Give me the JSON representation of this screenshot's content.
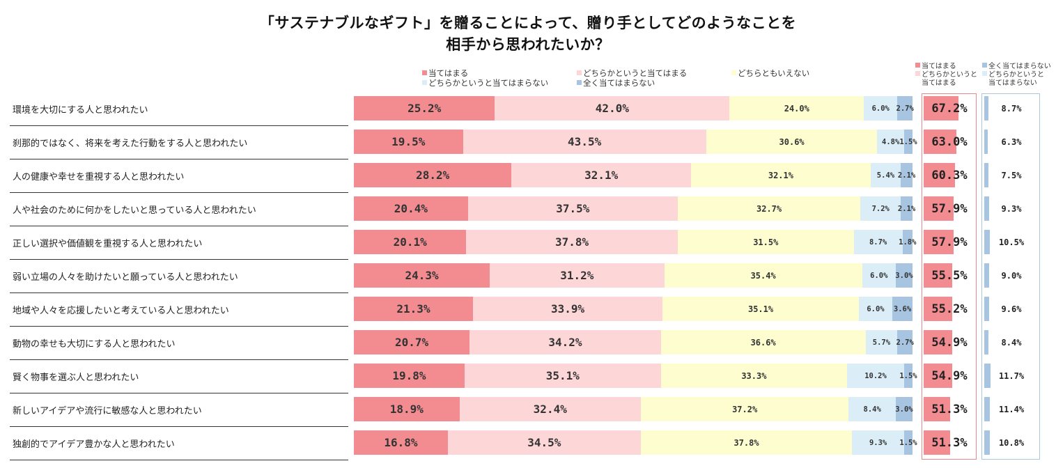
{
  "title_line1": "「サステナブルなギフト」を贈ることによって、贈り手としてどのようなことを",
  "title_line2": "相手から思われたいか？",
  "colors": {
    "c1": "#f28c91",
    "c2": "#fdd6d8",
    "c3": "#fdfdd0",
    "c4": "#dbedf6",
    "c5": "#a7c4e0"
  },
  "legend": {
    "c1": "当てはまる",
    "c2": "どちらかというと当てはまる",
    "c3": "どちらともいえない",
    "c4": "どちらかというと当てはまらない",
    "c5": "全く当てはまらない"
  },
  "summary_legend": {
    "pos_1": "当てはまる",
    "pos_2a": "どちらかというと",
    "pos_2b": "当てはまる",
    "neg_1": "全く当てはまらない",
    "neg_2a": "どちらかというと",
    "neg_2b": "当てはまらない"
  },
  "chart_data": {
    "type": "bar",
    "orientation": "horizontal",
    "stacked": true,
    "percent_format": "%",
    "categories": [
      "環境を大切にする人と思われたい",
      "刹那的ではなく、将来を考えた行動をする人と思われたい",
      "人の健康や幸せを重視する人と思われたい",
      "人や社会のために何かをしたいと思っている人と思われたい",
      "正しい選択や価値観を重視する人と思われたい",
      "弱い立場の人々を助けたいと願っている人と思われたい",
      "地域や人々を応援したいと考えている人と思われたい",
      "動物の幸せも大切にする人と思われたい",
      "賢く物事を選ぶ人と思われたい",
      "新しいアイデアや流行に敏感な人と思われたい",
      "独創的でアイデア豊かな人と思われたい"
    ],
    "series": [
      {
        "name": "当てはまる",
        "values": [
          25.2,
          19.5,
          28.2,
          20.4,
          20.1,
          24.3,
          21.3,
          20.7,
          19.8,
          18.9,
          16.8
        ]
      },
      {
        "name": "どちらかというと当てはまる",
        "values": [
          42.0,
          43.5,
          32.1,
          37.5,
          37.8,
          31.2,
          33.9,
          34.2,
          35.1,
          32.4,
          34.5
        ]
      },
      {
        "name": "どちらともいえない",
        "values": [
          24.0,
          30.6,
          32.1,
          32.7,
          31.5,
          35.4,
          35.1,
          36.6,
          33.3,
          37.2,
          37.8
        ]
      },
      {
        "name": "どちらかというと当てはまらない",
        "values": [
          6.0,
          4.8,
          5.4,
          7.2,
          8.7,
          6.0,
          6.0,
          5.7,
          10.2,
          8.4,
          9.3
        ]
      },
      {
        "name": "全く当てはまらない",
        "values": [
          2.7,
          1.5,
          2.1,
          2.1,
          1.8,
          3.0,
          3.6,
          2.7,
          1.5,
          3.0,
          1.5
        ]
      }
    ],
    "positive_total": [
      67.2,
      63.0,
      60.3,
      57.9,
      57.9,
      55.5,
      55.2,
      54.9,
      54.9,
      51.3,
      51.3
    ],
    "negative_total": [
      8.7,
      6.3,
      7.5,
      9.3,
      10.5,
      9.0,
      9.6,
      8.4,
      11.7,
      11.4,
      10.8
    ]
  }
}
